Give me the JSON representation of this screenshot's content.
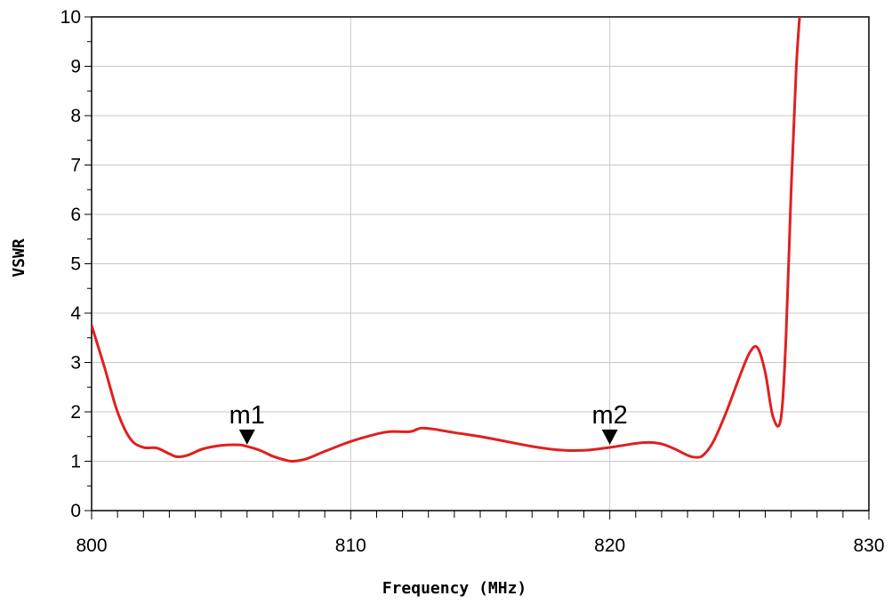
{
  "chart_data": {
    "type": "line",
    "xlabel": "Frequency (MHz)",
    "ylabel": "VSWR",
    "xlim": [
      800,
      830
    ],
    "ylim": [
      0,
      10
    ],
    "grid": true,
    "x_ticks": [
      "800",
      "810",
      "820",
      "830"
    ],
    "y_ticks": [
      "0",
      "1",
      "2",
      "3",
      "4",
      "5",
      "6",
      "7",
      "8",
      "9",
      "10"
    ],
    "series": [
      {
        "color": "#e02020",
        "x": [
          800,
          800.5,
          801,
          801.5,
          802,
          802.5,
          803,
          803.3,
          803.7,
          804.3,
          805,
          805.7,
          806,
          806.5,
          807,
          807.5,
          807.8,
          808.3,
          809,
          810,
          811,
          811.5,
          812.3,
          812.7,
          813.2,
          814,
          815,
          816,
          817,
          818,
          819,
          820,
          821,
          821.5,
          822,
          822.5,
          823,
          823.3,
          823.6,
          824,
          824.5,
          825,
          825.4,
          825.7,
          826,
          826.3,
          826.6,
          826.8,
          827,
          827.2,
          827.4
        ],
        "y": [
          3.75,
          2.9,
          2.0,
          1.45,
          1.28,
          1.27,
          1.15,
          1.09,
          1.12,
          1.25,
          1.32,
          1.33,
          1.3,
          1.22,
          1.1,
          1.02,
          1.0,
          1.05,
          1.2,
          1.4,
          1.55,
          1.6,
          1.6,
          1.67,
          1.65,
          1.58,
          1.5,
          1.4,
          1.3,
          1.23,
          1.22,
          1.28,
          1.36,
          1.38,
          1.35,
          1.25,
          1.12,
          1.08,
          1.12,
          1.4,
          2.0,
          2.7,
          3.2,
          3.3,
          2.8,
          1.9,
          1.85,
          3.5,
          6.5,
          9.0,
          10.5
        ]
      }
    ],
    "markers": [
      {
        "name": "m1",
        "x": 806,
        "y": 1.3
      },
      {
        "name": "m2",
        "x": 820,
        "y": 1.3
      }
    ]
  }
}
